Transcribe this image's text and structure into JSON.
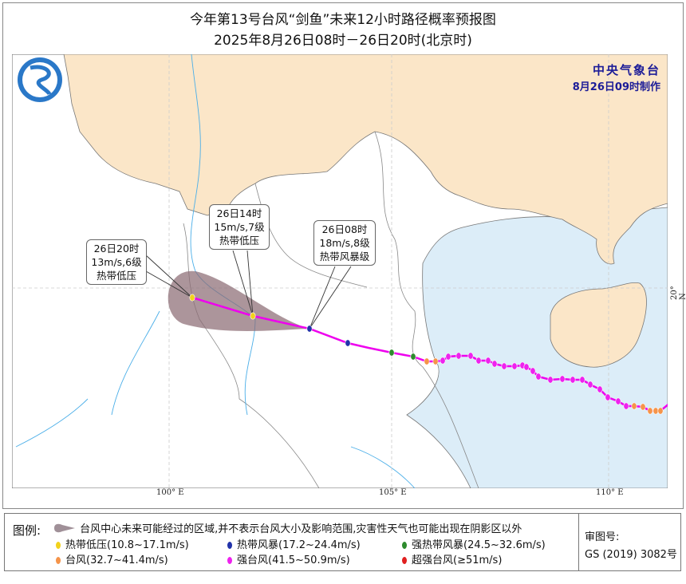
{
  "title": {
    "line1": "今年第13号台风“剑鱼”未来12小时路径概率预报图",
    "line2": "2025年8月26日08时－26日20时(北京时)"
  },
  "issuer": {
    "name": "中央气象台",
    "issued": "8月26日09时制作"
  },
  "axes": {
    "lon_labels": [
      "100° E",
      "105° E",
      "110° E"
    ],
    "lat_labels": [
      "20° N"
    ]
  },
  "callouts": [
    {
      "time": "26日20时",
      "wind": "13m/s,6级",
      "level": "热带低压"
    },
    {
      "time": "26日14时",
      "wind": "15m/s,7级",
      "level": "热带低压"
    },
    {
      "time": "26日08时",
      "wind": "18m/s,8级",
      "level": "热带风暴级"
    }
  ],
  "legend": {
    "title": "图例:",
    "cone": "台风中心未来可能经过的区域,并不表示台风大小及影响范围,灾害性天气也可能出现在阴影区以外",
    "items": [
      {
        "label": "热带低压(10.8~17.1m/s)",
        "color": "#f2d21c"
      },
      {
        "label": "热带风暴(17.2~24.4m/s)",
        "color": "#2233aa"
      },
      {
        "label": "强热带风暴(24.5~32.6m/s)",
        "color": "#2e8b2e"
      },
      {
        "label": "台风(32.7~41.4m/s)",
        "color": "#f5944a"
      },
      {
        "label": "强台风(41.5~50.9m/s)",
        "color": "#ee22ee"
      },
      {
        "label": "超强台风(≥51m/s)",
        "color": "#e02020"
      }
    ],
    "approval_label": "审图号:",
    "approval_no": "GS (2019) 3082号"
  },
  "colors": {
    "land_china": "#fbe6c8",
    "sea": "#dcedf8",
    "track": "#ee00ee",
    "cone": "#8c6c74",
    "river": "#4aaee8",
    "issuer": "#1c1c98"
  },
  "track_intensity_sequence": [
    "TD",
    "TD",
    "TS",
    "TS",
    "TS",
    "STS",
    "STS",
    "TY",
    "TY",
    "STY",
    "STY",
    "STY",
    "STY",
    "STY",
    "STY",
    "STY",
    "STY",
    "STY",
    "STY",
    "STY",
    "STY",
    "STY",
    "STY",
    "STY",
    "STY",
    "STY",
    "STY",
    "STY",
    "STY",
    "STY",
    "STY",
    "TY",
    "TY",
    "TY",
    "TY",
    "TY",
    "STY"
  ]
}
